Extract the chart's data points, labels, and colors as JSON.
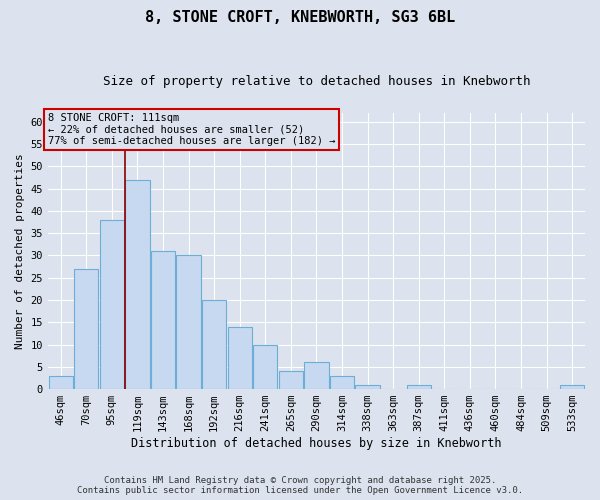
{
  "title": "8, STONE CROFT, KNEBWORTH, SG3 6BL",
  "subtitle": "Size of property relative to detached houses in Knebworth",
  "xlabel": "Distribution of detached houses by size in Knebworth",
  "ylabel": "Number of detached properties",
  "categories": [
    "46sqm",
    "70sqm",
    "95sqm",
    "119sqm",
    "143sqm",
    "168sqm",
    "192sqm",
    "216sqm",
    "241sqm",
    "265sqm",
    "290sqm",
    "314sqm",
    "338sqm",
    "363sqm",
    "387sqm",
    "411sqm",
    "436sqm",
    "460sqm",
    "484sqm",
    "509sqm",
    "533sqm"
  ],
  "values": [
    3,
    27,
    38,
    47,
    31,
    30,
    20,
    14,
    10,
    4,
    6,
    3,
    1,
    0,
    1,
    0,
    0,
    0,
    0,
    0,
    1
  ],
  "bar_color": "#c6d9f0",
  "bar_edge_color": "#6baed6",
  "background_color": "#dde3ee",
  "grid_color": "#ffffff",
  "annotation_box_text": "8 STONE CROFT: 111sqm\n← 22% of detached houses are smaller (52)\n77% of semi-detached houses are larger (182) →",
  "annotation_box_color": "#cc0000",
  "vline_x_index": 2.5,
  "vline_color": "#8b0000",
  "ylim": [
    0,
    62
  ],
  "yticks": [
    0,
    5,
    10,
    15,
    20,
    25,
    30,
    35,
    40,
    45,
    50,
    55,
    60
  ],
  "footer_line1": "Contains HM Land Registry data © Crown copyright and database right 2025.",
  "footer_line2": "Contains public sector information licensed under the Open Government Licence v3.0."
}
